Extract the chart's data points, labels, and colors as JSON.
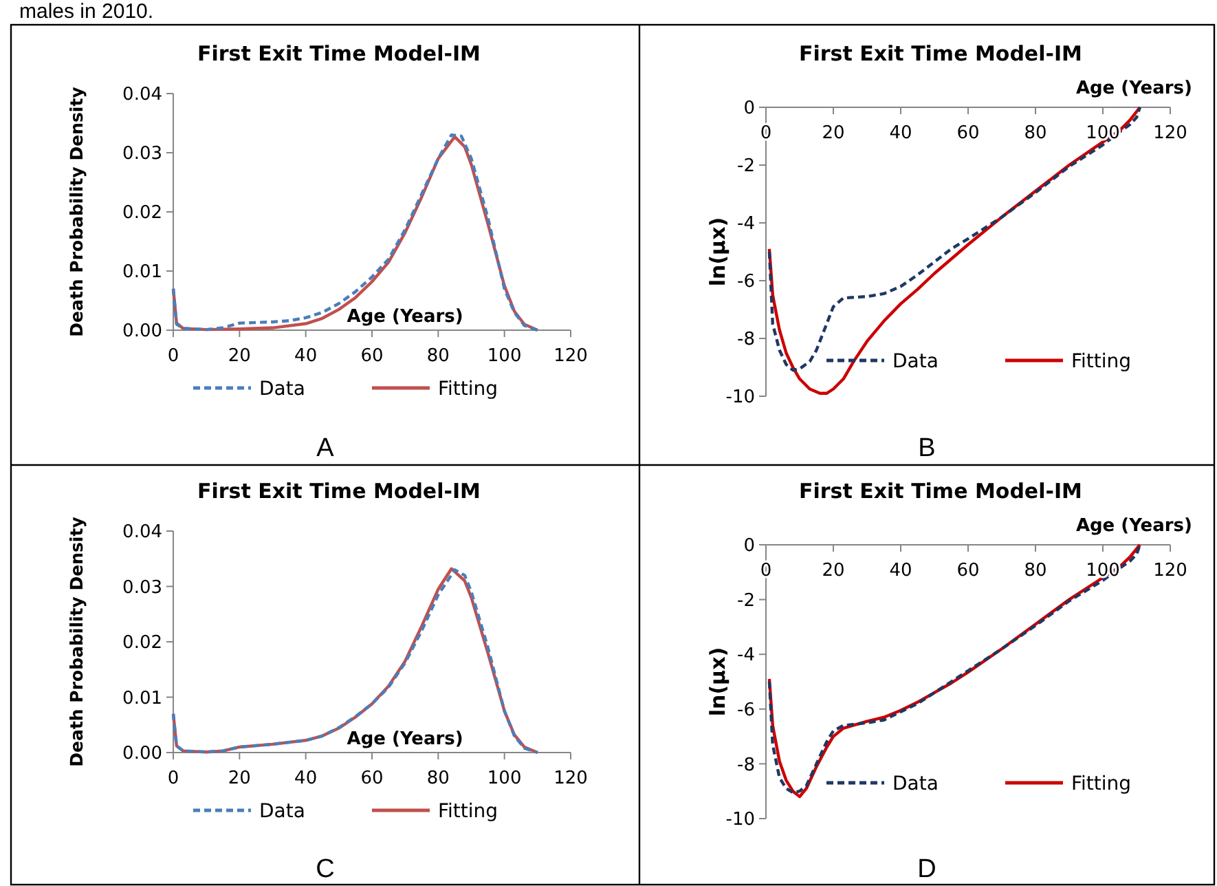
{
  "chart_data": [
    {
      "type": "line",
      "title": "First Exit Time Model-IM",
      "xlabel": "Age (Years)",
      "ylabel": "Death Probability Density",
      "annotations": [
        "males in 2010.",
        "A"
      ],
      "xlim": [
        0,
        120
      ],
      "xticks": [
        0,
        20,
        40,
        60,
        80,
        100,
        120
      ],
      "ylim": [
        0,
        0.04
      ],
      "yticks": [
        {
          "value": 0,
          "label": "0.00"
        },
        {
          "value": 0.01,
          "label": "0.01"
        },
        {
          "value": 0.02,
          "label": "0.02"
        },
        {
          "value": 0.03,
          "label": "0.03"
        },
        {
          "value": 0.04,
          "label": "0.04"
        }
      ],
      "grid": false,
      "legend": "bottom",
      "marker": "none",
      "series": [
        {
          "name": "Data",
          "color": "#4a7ebb",
          "line_style": "dashed",
          "x": [
            0,
            1,
            3,
            10,
            15,
            20,
            30,
            35,
            40,
            45,
            50,
            55,
            60,
            65,
            70,
            75,
            80,
            84,
            87,
            90,
            95,
            100,
            103,
            106,
            110
          ],
          "values": [
            0.007,
            0.001,
            0.0003,
            0.0001,
            0.0004,
            0.0012,
            0.0014,
            0.0016,
            0.0021,
            0.003,
            0.0045,
            0.0065,
            0.009,
            0.012,
            0.017,
            0.023,
            0.029,
            0.033,
            0.0328,
            0.029,
            0.019,
            0.007,
            0.003,
            0.0008,
            0
          ]
        },
        {
          "name": "Fitting",
          "color": "#c0504d",
          "line_style": "solid",
          "x": [
            0,
            1,
            3,
            10,
            20,
            30,
            40,
            45,
            50,
            55,
            60,
            65,
            70,
            75,
            80,
            85,
            88,
            90,
            95,
            100,
            103,
            106,
            110
          ],
          "values": [
            0.007,
            0.0012,
            0.0003,
            0.0001,
            0.0002,
            0.0004,
            0.0011,
            0.002,
            0.0035,
            0.0055,
            0.0082,
            0.0115,
            0.0165,
            0.0225,
            0.029,
            0.0327,
            0.031,
            0.028,
            0.018,
            0.0075,
            0.0032,
            0.001,
            0
          ]
        }
      ]
    },
    {
      "type": "line",
      "title": "First Exit Time Model-IM",
      "xlabel": "Age (Years)",
      "ylabel": "ln(µx)",
      "annotations": [
        "B"
      ],
      "xlim": [
        0,
        120
      ],
      "xticks": [
        0,
        20,
        40,
        60,
        80,
        100,
        120
      ],
      "ylim": [
        -10,
        0
      ],
      "yticks": [
        -10,
        -8,
        -6,
        -4,
        -2,
        0
      ],
      "grid": false,
      "legend": "bottom right",
      "marker": "none",
      "series": [
        {
          "name": "Data",
          "color": "#1f3864",
          "line_style": "dashed",
          "x": [
            1,
            2,
            4,
            6,
            8,
            10,
            13,
            15,
            18,
            20,
            23,
            30,
            35,
            40,
            45,
            50,
            55,
            60,
            70,
            80,
            90,
            100,
            105,
            108,
            110,
            111
          ],
          "values": [
            -5,
            -7.5,
            -8.4,
            -8.9,
            -9.1,
            -9.05,
            -8.8,
            -8.4,
            -7.5,
            -6.9,
            -6.6,
            -6.55,
            -6.45,
            -6.2,
            -5.8,
            -5.35,
            -4.9,
            -4.55,
            -3.8,
            -2.95,
            -2.05,
            -1.3,
            -0.85,
            -0.6,
            -0.35,
            0
          ]
        },
        {
          "name": "Fitting",
          "color": "#cc0000",
          "line_style": "solid",
          "x": [
            1,
            2,
            4,
            6,
            8,
            10,
            13,
            16,
            18,
            20,
            23,
            26,
            30,
            35,
            40,
            45,
            50,
            55,
            60,
            70,
            80,
            90,
            100,
            105,
            108,
            111
          ],
          "values": [
            -4.9,
            -6.5,
            -7.7,
            -8.5,
            -9,
            -9.4,
            -9.75,
            -9.9,
            -9.9,
            -9.75,
            -9.4,
            -8.8,
            -8.1,
            -7.4,
            -6.8,
            -6.3,
            -5.75,
            -5.25,
            -4.75,
            -3.8,
            -2.9,
            -2,
            -1.2,
            -0.8,
            -0.45,
            0
          ]
        }
      ]
    },
    {
      "type": "line",
      "title": "First Exit Time Model-IM",
      "xlabel": "Age (Years)",
      "ylabel": "Death Probability Density",
      "annotations": [
        "C"
      ],
      "xlim": [
        0,
        120
      ],
      "xticks": [
        0,
        20,
        40,
        60,
        80,
        100,
        120
      ],
      "ylim": [
        0,
        0.04
      ],
      "yticks": [
        {
          "value": 0,
          "label": "0.00"
        },
        {
          "value": 0.01,
          "label": "0.01"
        },
        {
          "value": 0.02,
          "label": "0.02"
        },
        {
          "value": 0.03,
          "label": "0.03"
        },
        {
          "value": 0.04,
          "label": "0.04"
        }
      ],
      "grid": false,
      "legend": "bottom",
      "marker": "none",
      "series": [
        {
          "name": "Data",
          "color": "#4a7ebb",
          "line_style": "dashed",
          "x": [
            0,
            1,
            3,
            10,
            15,
            20,
            30,
            40,
            45,
            50,
            55,
            60,
            65,
            70,
            75,
            80,
            85,
            88,
            90,
            95,
            100,
            103,
            106,
            110
          ],
          "values": [
            0.007,
            0.0012,
            0.0003,
            0.0001,
            0.0003,
            0.001,
            0.0015,
            0.0022,
            0.003,
            0.0045,
            0.0065,
            0.0088,
            0.0118,
            0.0162,
            0.022,
            0.0285,
            0.033,
            0.032,
            0.029,
            0.019,
            0.0075,
            0.003,
            0.0008,
            0
          ]
        },
        {
          "name": "Fitting",
          "color": "#c0504d",
          "line_style": "solid",
          "x": [
            0,
            1,
            3,
            10,
            15,
            20,
            30,
            40,
            45,
            50,
            55,
            60,
            65,
            70,
            75,
            80,
            84,
            88,
            90,
            95,
            100,
            103,
            106,
            110
          ],
          "values": [
            0.007,
            0.0012,
            0.0003,
            0.0001,
            0.0003,
            0.001,
            0.0015,
            0.0022,
            0.003,
            0.0044,
            0.0064,
            0.0088,
            0.012,
            0.0165,
            0.0228,
            0.0295,
            0.0332,
            0.031,
            0.028,
            0.018,
            0.0075,
            0.0032,
            0.001,
            0
          ]
        }
      ]
    },
    {
      "type": "line",
      "title": "First Exit Time Model-IM",
      "xlabel": "Age (Years)",
      "ylabel": "ln(µx)",
      "annotations": [
        "D"
      ],
      "xlim": [
        0,
        120
      ],
      "xticks": [
        0,
        20,
        40,
        60,
        80,
        100,
        120
      ],
      "ylim": [
        -10,
        0
      ],
      "yticks": [
        -10,
        -8,
        -6,
        -4,
        -2,
        0
      ],
      "grid": false,
      "legend": "bottom right",
      "marker": "none",
      "series": [
        {
          "name": "Data",
          "color": "#1f3864",
          "line_style": "dashed",
          "x": [
            1,
            2,
            4,
            6,
            8,
            10,
            12,
            15,
            18,
            20,
            23,
            30,
            35,
            40,
            45,
            50,
            55,
            60,
            70,
            80,
            90,
            100,
            105,
            108,
            110,
            111
          ],
          "values": [
            -5,
            -7.3,
            -8.5,
            -8.9,
            -9.05,
            -9,
            -8.8,
            -8,
            -7.2,
            -6.8,
            -6.6,
            -6.5,
            -6.4,
            -6.1,
            -5.8,
            -5.4,
            -5,
            -4.6,
            -3.8,
            -2.95,
            -2.05,
            -1.3,
            -0.85,
            -0.6,
            -0.35,
            0
          ]
        },
        {
          "name": "Fitting",
          "color": "#cc0000",
          "line_style": "solid",
          "x": [
            1,
            2,
            4,
            6,
            8,
            10,
            12,
            15,
            18,
            20,
            23,
            30,
            35,
            40,
            45,
            50,
            55,
            60,
            70,
            80,
            90,
            100,
            105,
            108,
            111
          ],
          "values": [
            -4.9,
            -6.6,
            -7.9,
            -8.6,
            -9,
            -9.2,
            -8.9,
            -8.1,
            -7.4,
            -7,
            -6.7,
            -6.45,
            -6.3,
            -6.05,
            -5.75,
            -5.4,
            -5.05,
            -4.65,
            -3.8,
            -2.9,
            -2,
            -1.2,
            -0.8,
            -0.45,
            0
          ]
        }
      ]
    }
  ]
}
